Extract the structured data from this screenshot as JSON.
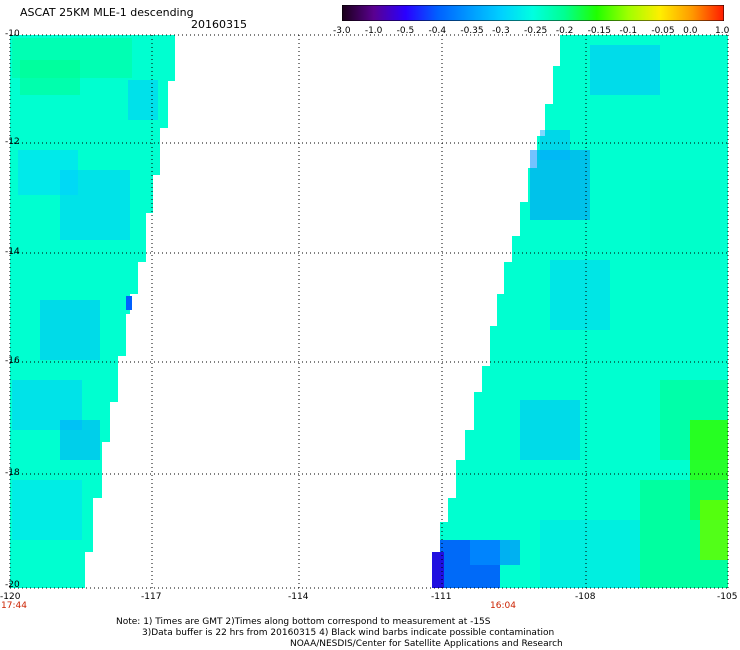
{
  "header": {
    "title": "ASCAT 25KM MLE-1 descending",
    "date": "20160315"
  },
  "colorbar": {
    "labels": [
      "-3.0",
      "-1.0",
      "-0.5",
      "-0.4",
      "-0.35",
      "-0.3",
      "-0.25",
      "-0.2",
      "-0.15",
      "-0.1",
      "-0.05",
      "0.0",
      "1.0"
    ],
    "colors": [
      "#1a0018",
      "#5a0090",
      "#2a00ff",
      "#0060ff",
      "#0099ff",
      "#00d0ff",
      "#00ffe0",
      "#00ff90",
      "#20ff00",
      "#a0ff00",
      "#ffee00",
      "#ff9900",
      "#ff1a00"
    ]
  },
  "map": {
    "lat_labels": [
      "-10",
      "-12",
      "-14",
      "-16",
      "-18",
      "-20"
    ],
    "lon_labels": [
      "-120",
      "-117",
      "-114",
      "-111",
      "-108",
      "-105"
    ],
    "time_labels": [
      "17:44",
      "16:04"
    ]
  },
  "notes": {
    "line1": "Note: 1) Times are GMT 2)Times along bottom correspond to measurement at -15S",
    "line2": "3)Data buffer is 22 hrs from 20160315 4) Black wind barbs indicate possible contamination",
    "line3": "NOAA/NESDIS/Center for Satellite Applications and Research"
  }
}
